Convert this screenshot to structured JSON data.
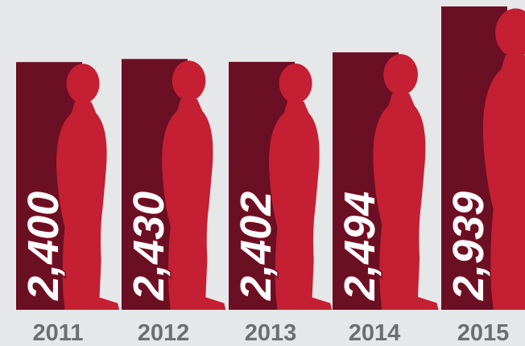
{
  "chart_data": {
    "type": "bar",
    "categories": [
      "2011",
      "2012",
      "2013",
      "2014",
      "2015"
    ],
    "values": [
      2400,
      2430,
      2402,
      2494,
      2939
    ],
    "value_labels": [
      "2,400",
      "2,430",
      "2,402",
      "2,494",
      "2,939"
    ],
    "color": "#6a0f24",
    "silhouette_color": "#c41f32"
  }
}
